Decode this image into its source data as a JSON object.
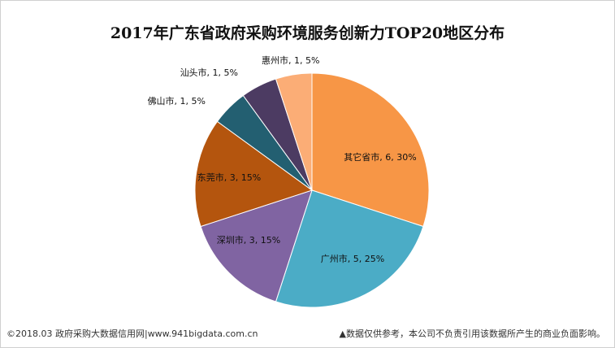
{
  "chart_data": {
    "type": "pie",
    "title": "2017年广东省政府采购环境服务创新力TOP20地区分布",
    "slices": [
      {
        "name": "其它省市",
        "value": 6,
        "percent": "30%",
        "label": "其它省市, 6, 30%",
        "color": "#f79646"
      },
      {
        "name": "广州市",
        "value": 5,
        "percent": "25%",
        "label": "广州市, 5, 25%",
        "color": "#4bacc6"
      },
      {
        "name": "深圳市",
        "value": 3,
        "percent": "15%",
        "label": "深圳市, 3, 15%",
        "color": "#8064a2"
      },
      {
        "name": "东莞市",
        "value": 3,
        "percent": "15%",
        "label": "东莞市, 3, 15%",
        "color": "#b4550e"
      },
      {
        "name": "佛山市",
        "value": 1,
        "percent": "5%",
        "label": "佛山市, 1, 5%",
        "color": "#235f71"
      },
      {
        "name": "汕头市",
        "value": 1,
        "percent": "5%",
        "label": "汕头市, 1, 5%",
        "color": "#4c3b62"
      },
      {
        "name": "惠州市",
        "value": 1,
        "percent": "5%",
        "label": "惠州市, 1, 5%",
        "color": "#fbad76"
      }
    ]
  },
  "footer": {
    "left": "©2018.03 政府采购大数据信用网|www.941bigdata.com.cn",
    "right": "▲数据仅供参考，本公司不负责引用该数据所产生的商业负面影响。"
  }
}
